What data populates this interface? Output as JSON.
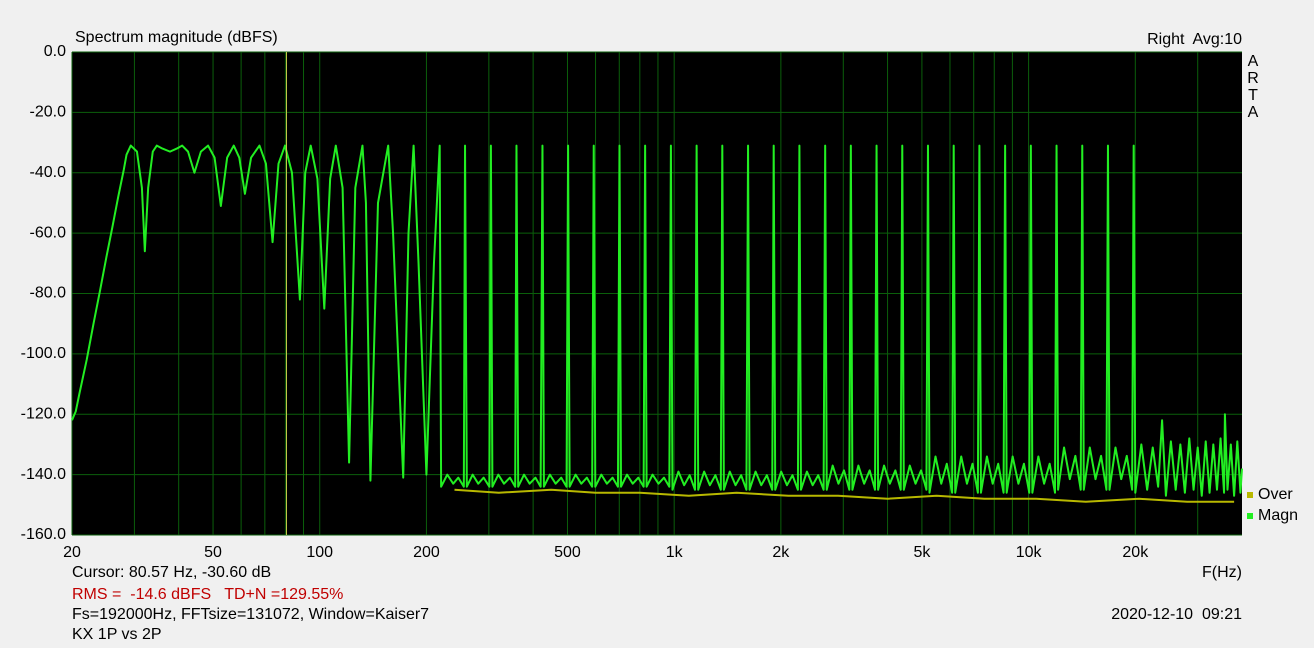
{
  "chart_data": {
    "type": "line",
    "title": "Spectrum magnitude (dBFS)",
    "channel": "Right  Avg:10",
    "brand": [
      "A",
      "R",
      "T",
      "A"
    ],
    "x_label": "F(Hz)",
    "cursor": {
      "text": "Cursor: 80.57 Hz, -30.60 dB",
      "x": 80.57
    },
    "rms": "RMS =  -14.6 dBFS   TD+N =129.55%",
    "settings": "Fs=192000Hz, FFTsize=131072, Window=Kaiser7",
    "note": "KX 1P vs 2P",
    "date": "2020-12-10  09:21",
    "log_x": true,
    "grid": true,
    "xlim": [
      20,
      40000
    ],
    "ylim": [
      -160,
      0
    ],
    "xticks": [
      20,
      50,
      100,
      200,
      500,
      {
        "value": 1000,
        "label": "1k"
      },
      {
        "value": 2000,
        "label": "2k"
      },
      {
        "value": 5000,
        "label": "5k"
      },
      {
        "value": 10000,
        "label": "10k"
      },
      {
        "value": 20000,
        "label": "20k"
      }
    ],
    "xticks_minor": [
      30,
      40,
      60,
      70,
      80,
      90,
      300,
      400,
      600,
      700,
      800,
      900,
      3000,
      4000,
      6000,
      7000,
      8000,
      9000,
      30000
    ],
    "yticks": [
      {
        "value": 0,
        "label": "0.0"
      },
      {
        "value": -20,
        "label": "-20.0"
      },
      {
        "value": -40,
        "label": "-40.0"
      },
      {
        "value": -60,
        "label": "-60.0"
      },
      {
        "value": -80,
        "label": "-80.0"
      },
      {
        "value": -100,
        "label": "-100.0"
      },
      {
        "value": -120,
        "label": "-120.0"
      },
      {
        "value": -140,
        "label": "-140.0"
      },
      {
        "value": -160,
        "label": "-160.0"
      }
    ],
    "series": [
      {
        "name": "Over",
        "color": "#b8b800",
        "x": [
          240,
          320,
          450,
          600,
          800,
          1100,
          1500,
          2100,
          2900,
          4000,
          5500,
          7500,
          10500,
          14500,
          20500,
          28000,
          38000
        ],
        "values": [
          -145,
          -146,
          -145,
          -146,
          -146,
          -147,
          -146,
          -147,
          -147,
          -148,
          -147,
          -148,
          -148,
          -149,
          -148,
          -149,
          -149
        ]
      },
      {
        "name": "Magn",
        "color": "#22ee22",
        "x": [
          20,
          20.5,
          21,
          22,
          23,
          24,
          25,
          26,
          27,
          28,
          28.5,
          29.3,
          30.5,
          31.5,
          32.1,
          32.8,
          33.8,
          34.7,
          36,
          37.8,
          39.5,
          40.9,
          42.5,
          44.3,
          46.2,
          48.4,
          50.5,
          52.6,
          54.8,
          57.2,
          59.3,
          61.5,
          64,
          67.6,
          70.5,
          73.6,
          76.5,
          79.8,
          83.5,
          87.9,
          91,
          94.3,
          98.5,
          103,
          107,
          111,
          116,
          121,
          126,
          132,
          135,
          139,
          146,
          156,
          161,
          172,
          178,
          184,
          190,
          200,
          210,
          218,
          220,
          229,
          238,
          246,
          255,
          257,
          260,
          270,
          280,
          290,
          301,
          304,
          307,
          319,
          331,
          344,
          356,
          359,
          363,
          377,
          391,
          406,
          420,
          425,
          429,
          446,
          463,
          480,
          497,
          502,
          507,
          527,
          547,
          567,
          587,
          593,
          599,
          623,
          646,
          670,
          694,
          701,
          708,
          736,
          764,
          792,
          820,
          828,
          836,
          869,
          903,
          936,
          969,
          979,
          989,
          1028,
          1067,
          1106,
          1145,
          1157,
          1169,
          1215,
          1261,
          1307,
          1354,
          1367,
          1381,
          1435,
          1490,
          1545,
          1599,
          1616,
          1632,
          1697,
          1761,
          1826,
          1891,
          1909,
          1928,
          2004,
          2081,
          2157,
          2234,
          2256,
          2279,
          2369,
          2459,
          2549,
          2640,
          2667,
          2694,
          2800,
          2907,
          3014,
          3120,
          3151,
          3183,
          3309,
          3435,
          3561,
          3687,
          3724,
          3761,
          3910,
          4059,
          4208,
          4357,
          4401,
          4445,
          4621,
          4797,
          4973,
          5149,
          5201,
          5253,
          5461,
          5669,
          5877,
          6085,
          6147,
          6208,
          6454,
          6700,
          6946,
          7192,
          7264,
          7337,
          7627,
          7918,
          8208,
          8499,
          8585,
          8671,
          9014,
          9358,
          9701,
          10044,
          10146,
          10247,
          10653,
          11059,
          11465,
          11871,
          11990,
          12110,
          12590,
          13069,
          13549,
          14028,
          14170,
          14312,
          14879,
          15445,
          16012,
          16579,
          16746,
          16913,
          17583,
          18253,
          18923,
          19593,
          19790,
          20000,
          20800,
          21600,
          22400,
          23200,
          23800,
          24400,
          25200,
          26000,
          26800,
          27600,
          28400,
          29200,
          30000,
          30800,
          31600,
          32400,
          33200,
          34000,
          34800,
          35600,
          35800,
          36400,
          37200,
          38000,
          38800,
          39600,
          40000
        ],
        "values": [
          -122,
          -119,
          -113,
          -102,
          -90,
          -79,
          -68,
          -58,
          -48,
          -39,
          -34,
          -31,
          -33,
          -45,
          -66,
          -45,
          -33,
          -31,
          -32,
          -33,
          -32,
          -31,
          -33,
          -40,
          -33,
          -31,
          -35,
          -51,
          -35,
          -31,
          -35,
          -47,
          -35,
          -31,
          -37,
          -63,
          -37,
          -31,
          -40,
          -82,
          -40,
          -31,
          -42,
          -85,
          -42,
          -31,
          -45,
          -136,
          -45,
          -31,
          -50,
          -142,
          -50,
          -31,
          -60,
          -141,
          -60,
          -31,
          -70,
          -140,
          -70,
          -31,
          -144,
          -140,
          -143,
          -141,
          -144,
          -31,
          -144,
          -140,
          -143,
          -141,
          -144,
          -31,
          -144,
          -140,
          -143,
          -141,
          -144,
          -31,
          -144,
          -140,
          -143,
          -141,
          -144,
          -31,
          -144,
          -140,
          -143,
          -141,
          -144,
          -31,
          -144,
          -140,
          -143,
          -141,
          -144,
          -31,
          -144,
          -140,
          -143,
          -141,
          -144,
          -31,
          -144,
          -140,
          -143,
          -141,
          -144,
          -31,
          -144,
          -140,
          -143,
          -141,
          -144,
          -31,
          -145,
          -139,
          -143.5,
          -140.2,
          -145,
          -31,
          -145,
          -139,
          -143.5,
          -140.2,
          -145,
          -31,
          -145,
          -139,
          -143.5,
          -140.2,
          -145,
          -31,
          -145,
          -139,
          -143.5,
          -140.2,
          -145,
          -31,
          -145,
          -139,
          -143.5,
          -140.2,
          -145,
          -31,
          -145,
          -139,
          -143.5,
          -140.2,
          -145,
          -31,
          -145,
          -137,
          -143,
          -138.6,
          -145,
          -31,
          -145,
          -137,
          -143,
          -138.6,
          -145,
          -31,
          -145,
          -137,
          -143,
          -138.6,
          -145,
          -31,
          -145,
          -137,
          -143,
          -138.6,
          -145,
          -31,
          -146,
          -134,
          -143,
          -136.4,
          -146,
          -31,
          -146,
          -134,
          -143,
          -136.4,
          -146,
          -31,
          -146,
          -134,
          -143,
          -136.4,
          -146,
          -31,
          -146,
          -134,
          -143,
          -136.4,
          -146,
          -31,
          -146,
          -134,
          -143,
          -136.4,
          -146,
          -31,
          -145,
          -131,
          -141.5,
          -133.8,
          -145,
          -31,
          -145,
          -131,
          -141.5,
          -133.8,
          -145,
          -31,
          -145,
          -131,
          -141.5,
          -133.8,
          -145,
          -31,
          -146,
          -130,
          -145,
          -131,
          -144,
          -122,
          -147,
          -129,
          -145,
          -130,
          -146,
          -128,
          -145,
          -131,
          -147,
          -129,
          -146,
          -130,
          -145,
          -128,
          -146,
          -120,
          -145,
          -130,
          -147,
          -129,
          -146,
          -138
        ]
      }
    ]
  }
}
